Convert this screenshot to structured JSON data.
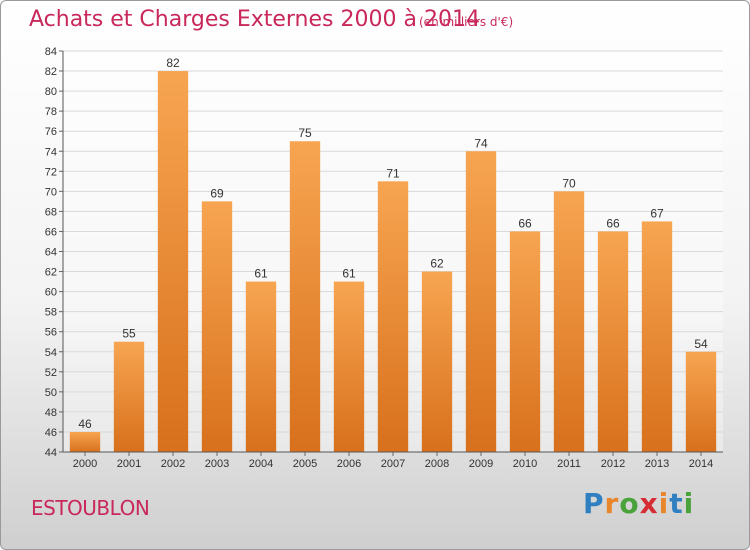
{
  "header": {
    "title": "Achats et Charges Externes 2000 à 2014",
    "subtitle": "(en milliers d'€)"
  },
  "footer": {
    "place": "ESTOUBLON",
    "logo_letters": [
      "P",
      "r",
      "o",
      "x",
      "i",
      "t",
      "i"
    ],
    "logo_colors": [
      "#2f7fc1",
      "#e8862b",
      "#4aa23a",
      "#d62d35",
      "#e8862b",
      "#2f7fc1",
      "#4aa23a"
    ]
  },
  "colors": {
    "bar_top": "#f7a551",
    "bar_bottom": "#d8701c",
    "accent": "#c8285a"
  },
  "chart_data": {
    "type": "bar",
    "categories": [
      "2000",
      "2001",
      "2002",
      "2003",
      "2004",
      "2005",
      "2006",
      "2007",
      "2008",
      "2009",
      "2010",
      "2011",
      "2012",
      "2013",
      "2014"
    ],
    "values": [
      46,
      55,
      82,
      69,
      61,
      75,
      61,
      71,
      62,
      74,
      66,
      70,
      66,
      67,
      54
    ],
    "title": "Achats et Charges Externes 2000 à 2014",
    "ylim": [
      44,
      84
    ],
    "yticks": [
      44,
      46,
      48,
      50,
      52,
      54,
      56,
      58,
      60,
      62,
      64,
      66,
      68,
      70,
      72,
      74,
      76,
      78,
      80,
      82,
      84
    ],
    "grid": true,
    "data_labels": true
  }
}
